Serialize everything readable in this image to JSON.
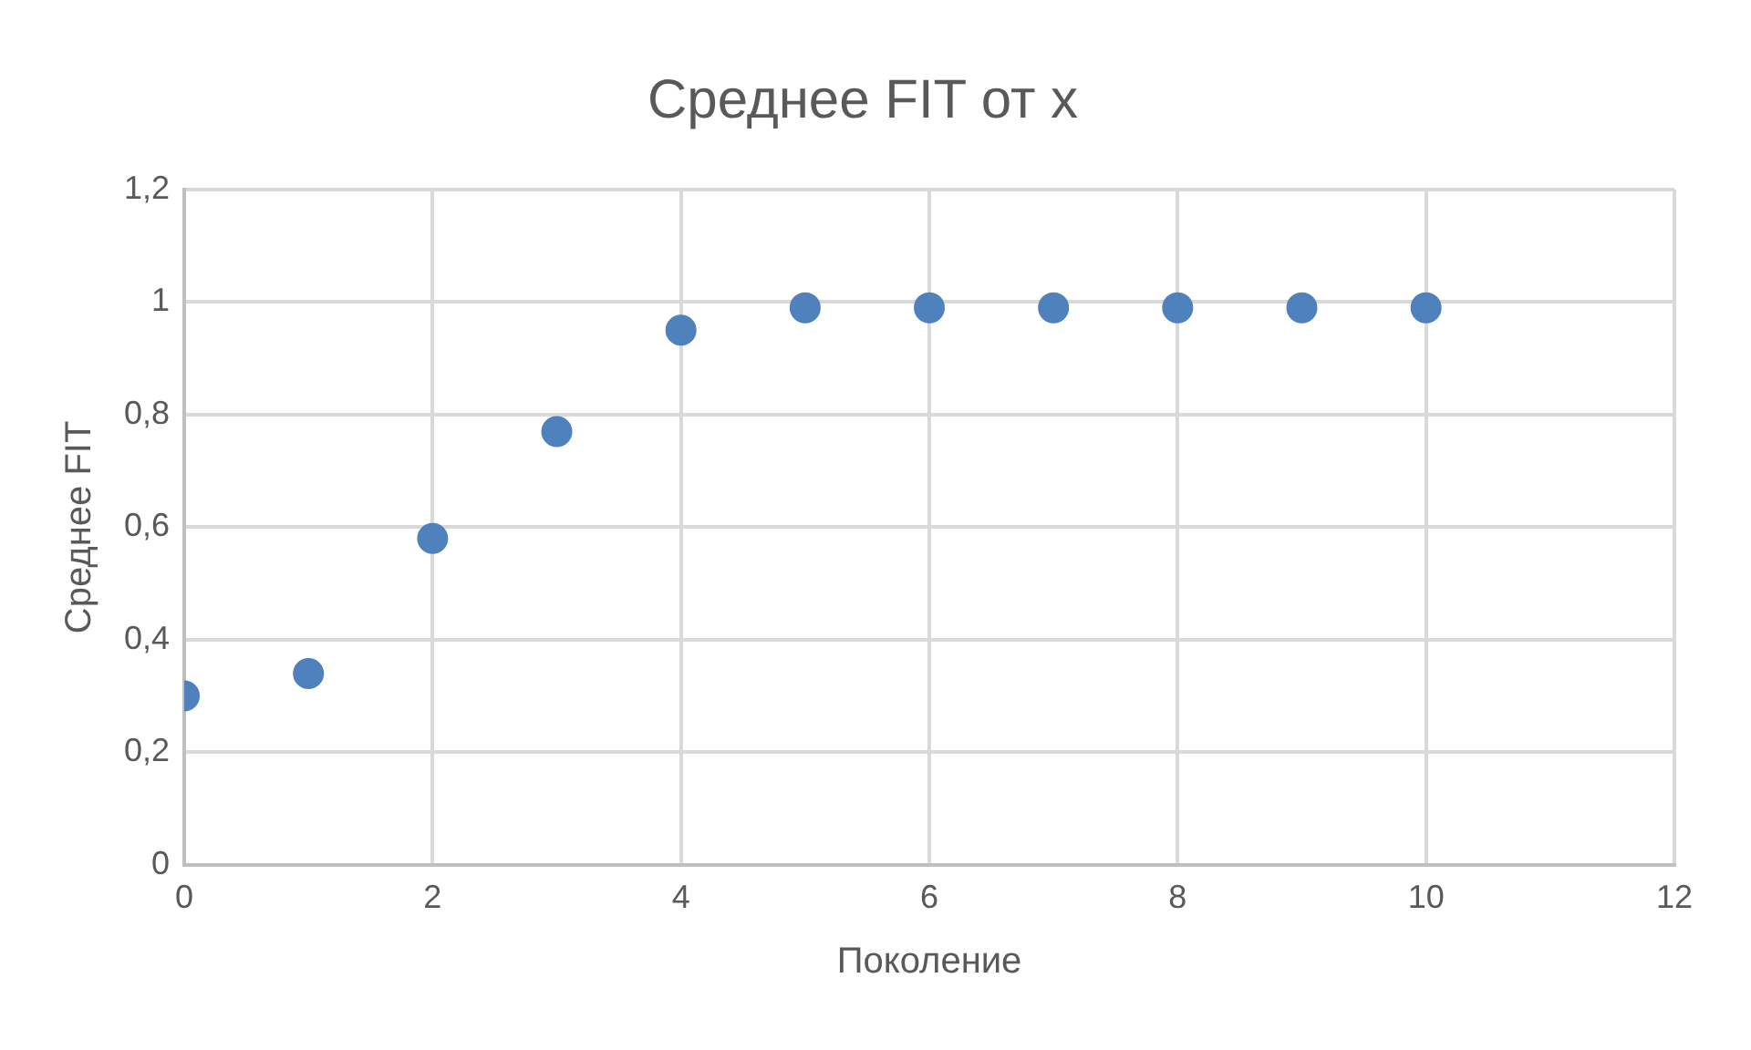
{
  "chart_data": {
    "type": "scatter",
    "title": "Среднее FIT от x",
    "xlabel": "Поколение",
    "ylabel": "Среднее FIT",
    "x": [
      0,
      1,
      2,
      3,
      4,
      5,
      6,
      7,
      8,
      9,
      10
    ],
    "series": [
      {
        "color": "#4f81bd",
        "values": [
          0.3,
          0.34,
          0.58,
          0.77,
          0.95,
          0.99,
          0.99,
          0.99,
          0.99,
          0.99,
          0.99
        ]
      }
    ],
    "xlim": [
      0,
      12
    ],
    "xticks": [
      0,
      2,
      4,
      6,
      8,
      10,
      12
    ],
    "ylim": [
      0,
      1.2
    ],
    "yticks": [
      0,
      {
        "value": 0.2,
        "label": "0,2"
      },
      {
        "value": 0.4,
        "label": "0,4"
      },
      {
        "value": 0.6,
        "label": "0,6"
      },
      {
        "value": 0.8,
        "label": "0,8"
      },
      1,
      {
        "value": 1.2,
        "label": "1,2"
      }
    ],
    "grid": true,
    "legend": false,
    "marker": "circle"
  }
}
